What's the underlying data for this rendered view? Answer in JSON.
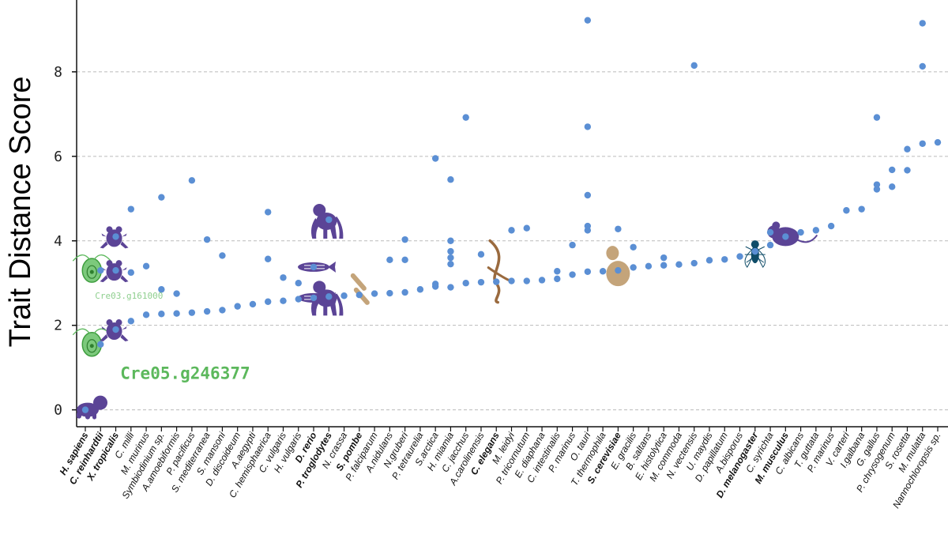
{
  "chart_data": {
    "type": "scatter",
    "ylabel": "Trait Distance Score",
    "xlabel": "",
    "ylim": [
      -0.4,
      9.7
    ],
    "yticks": [
      0,
      2,
      4,
      6,
      8
    ],
    "grid": "horizontal dashed",
    "colors": {
      "point": "#5b8fd4",
      "primate": "#5b4496",
      "algae": "#5cb85c",
      "fungus": "#c4a47a",
      "worm": "#9a6a3e",
      "fly": "#0f4c68",
      "axis": "#111111",
      "grid": "#bbbbbb"
    },
    "species": [
      {
        "name": "H. sapiens",
        "color": "#5b4496",
        "bold": true,
        "icon": "infant-silhouette-icon",
        "values": [
          0
        ]
      },
      {
        "name": "C. reinhardtii",
        "color": "#5cb85c",
        "bold": true,
        "icon": "chlamydomonas-icon",
        "values": [
          1.55,
          3.3
        ]
      },
      {
        "name": "X. tropicalis",
        "color": "#5b4496",
        "bold": true,
        "icon": "frog-icon",
        "values": [
          1.9,
          3.3,
          4.1
        ]
      },
      {
        "name": "C. milli",
        "values": [
          2.1,
          3.25,
          4.75
        ]
      },
      {
        "name": "M. murinus",
        "values": [
          2.25,
          3.4
        ]
      },
      {
        "name": "Symbiodinium sp.",
        "values": [
          2.27,
          2.85,
          5.03
        ]
      },
      {
        "name": "A.amoebiformis",
        "values": [
          2.28,
          2.75
        ]
      },
      {
        "name": "P. pacificus",
        "values": [
          2.3,
          5.43
        ]
      },
      {
        "name": "S. mediterranea",
        "values": [
          2.33,
          4.03
        ]
      },
      {
        "name": "S. mansoni",
        "values": [
          2.36,
          3.65
        ]
      },
      {
        "name": "D. discoideum",
        "values": [
          2.45
        ]
      },
      {
        "name": "A.aegypti",
        "values": [
          2.5
        ]
      },
      {
        "name": "C. hemisphaerica",
        "values": [
          2.56,
          3.57,
          4.68
        ]
      },
      {
        "name": "C. vulgaris",
        "values": [
          2.58,
          3.13
        ]
      },
      {
        "name": "H. vulgaris",
        "values": [
          2.62,
          3.0
        ]
      },
      {
        "name": "D. rerio",
        "color": "#5b4496",
        "bold": true,
        "icon": "zebrafish-icon",
        "values": [
          2.65,
          3.38
        ]
      },
      {
        "name": "P. troglodytes",
        "color": "#5b4496",
        "bold": true,
        "icon": "chimpanzee-icon",
        "values": [
          2.68,
          4.5
        ]
      },
      {
        "name": "N. crassa",
        "values": [
          2.7
        ]
      },
      {
        "name": "S. pombe",
        "color": "#c4a47a",
        "bold": true,
        "icon": "fission-yeast-icon",
        "values": [
          2.72
        ]
      },
      {
        "name": "P. falciparum",
        "values": [
          2.75
        ]
      },
      {
        "name": "A.nidulans",
        "values": [
          2.76,
          3.55
        ]
      },
      {
        "name": "N.gruberi",
        "values": [
          2.78,
          3.55,
          4.03
        ]
      },
      {
        "name": "P. tetraurelia",
        "values": [
          2.85
        ]
      },
      {
        "name": "S.arctica",
        "values": [
          2.92,
          2.98,
          5.95
        ]
      },
      {
        "name": "H. miamia",
        "values": [
          2.9,
          3.45,
          3.6,
          3.75,
          4.0,
          5.45
        ]
      },
      {
        "name": "C. jacchus",
        "values": [
          3.0,
          6.92
        ]
      },
      {
        "name": "A.carolinensis",
        "values": [
          3.02,
          3.68
        ]
      },
      {
        "name": "C. elegans",
        "color": "#9a6a3e",
        "bold": true,
        "icon": "nematode-icon",
        "values": [
          3.03
        ]
      },
      {
        "name": "M. leidyi",
        "values": [
          3.05,
          4.25
        ]
      },
      {
        "name": "P. tricornutum",
        "values": [
          3.05,
          4.3
        ]
      },
      {
        "name": "E. diaphana",
        "values": [
          3.07
        ]
      },
      {
        "name": "C. intestinalis",
        "values": [
          3.1,
          3.28
        ]
      },
      {
        "name": "P. marinus",
        "values": [
          3.2,
          3.9
        ]
      },
      {
        "name": "O. tauri",
        "values": [
          3.27,
          4.25,
          4.35,
          5.08,
          6.7,
          9.22
        ]
      },
      {
        "name": "T. thermophila",
        "values": [
          3.28
        ]
      },
      {
        "name": "S. cerevisiae",
        "color": "#c4a47a",
        "bold": true,
        "icon": "budding-yeast-icon",
        "values": [
          3.3,
          4.28
        ]
      },
      {
        "name": "E. gracilis",
        "values": [
          3.37,
          3.85
        ]
      },
      {
        "name": "B. saltans",
        "values": [
          3.4
        ]
      },
      {
        "name": "E. histolytica",
        "values": [
          3.42,
          3.6
        ]
      },
      {
        "name": "M. commoda",
        "values": [
          3.44
        ]
      },
      {
        "name": "N. vectensis",
        "values": [
          3.47,
          8.15
        ]
      },
      {
        "name": "U. maydis",
        "values": [
          3.54
        ]
      },
      {
        "name": "D. papillatum",
        "values": [
          3.56
        ]
      },
      {
        "name": "A.bisporus",
        "values": [
          3.63
        ]
      },
      {
        "name": "D. melanogaster",
        "color": "#0f4c68",
        "bold": true,
        "icon": "fruit-fly-icon",
        "values": [
          3.75
        ]
      },
      {
        "name": "C. syrichta",
        "values": [
          3.9,
          4.2
        ]
      },
      {
        "name": "M. musculus",
        "color": "#5b4496",
        "bold": true,
        "icon": "mouse-icon",
        "values": [
          4.1
        ]
      },
      {
        "name": "C. albicans",
        "values": [
          4.2
        ]
      },
      {
        "name": "T. guttata",
        "values": [
          4.25
        ]
      },
      {
        "name": "P. marinus",
        "values": [
          4.35
        ]
      },
      {
        "name": "V. carteri",
        "values": [
          4.72
        ]
      },
      {
        "name": "I.galbana",
        "values": [
          4.75
        ]
      },
      {
        "name": "G. gallus",
        "values": [
          5.22,
          5.33,
          6.92
        ]
      },
      {
        "name": "P. chrysogenum",
        "values": [
          5.28,
          5.68
        ]
      },
      {
        "name": "S. rosetta",
        "values": [
          5.67,
          6.17
        ]
      },
      {
        "name": "M. mulatta",
        "values": [
          6.3,
          8.13,
          9.15
        ]
      },
      {
        "name": "Nannochloropsis sp.",
        "values": [
          6.33
        ]
      }
    ],
    "annotations": [
      {
        "text": "Cre05.g246377",
        "species": "C. reinhardtii",
        "value": 1.55,
        "color": "#5cb85c",
        "size": "large"
      },
      {
        "text": "Cre03.g161000",
        "species": "C. reinhardtii",
        "value": 3.3,
        "color": "#8fcf8f",
        "size": "small"
      }
    ]
  }
}
